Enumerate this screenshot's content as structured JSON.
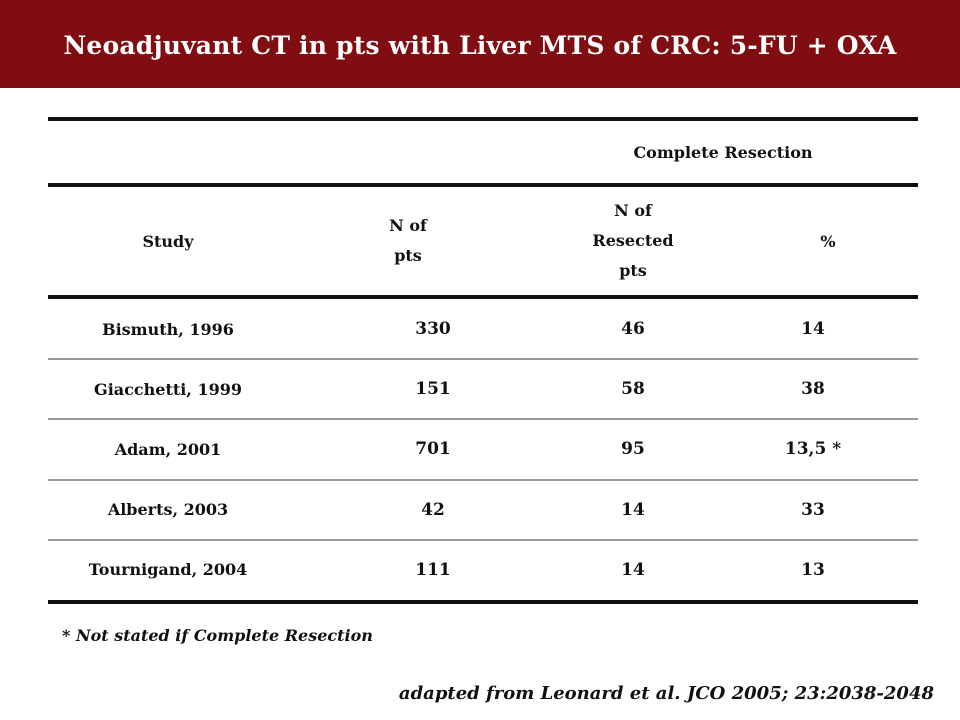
{
  "slide": {
    "title": "Neoadjuvant CT in pts with Liver MTS of CRC: 5-FU + OXA",
    "colors": {
      "title_bar": "#7f0d12",
      "title_text": "#ffffff",
      "rules": "#111111"
    }
  },
  "table": {
    "group_header": "Complete Resection",
    "headers": {
      "study": "Study",
      "n_pts": [
        "N of",
        "pts"
      ],
      "n_resected": [
        "N of",
        "Resected",
        "pts"
      ],
      "percent": "%"
    },
    "rows": [
      {
        "study": "Bismuth, 1996",
        "n_pts": "330",
        "n_resected": "46",
        "percent": "14"
      },
      {
        "study": "Giacchetti, 1999",
        "n_pts": "151",
        "n_resected": "58",
        "percent": "38"
      },
      {
        "study": "Adam, 2001",
        "n_pts": "701",
        "n_resected": "95",
        "percent": "13,5 *"
      },
      {
        "study": "Alberts, 2003",
        "n_pts": "42",
        "n_resected": "14",
        "percent": "33"
      },
      {
        "study": "Tournigand, 2004",
        "n_pts": "111",
        "n_resected": "14",
        "percent": "13"
      }
    ]
  },
  "footnote": "* Not stated if Complete Resection",
  "source": "adapted from Leonard et al. JCO 2005; 23:2038-2048"
}
